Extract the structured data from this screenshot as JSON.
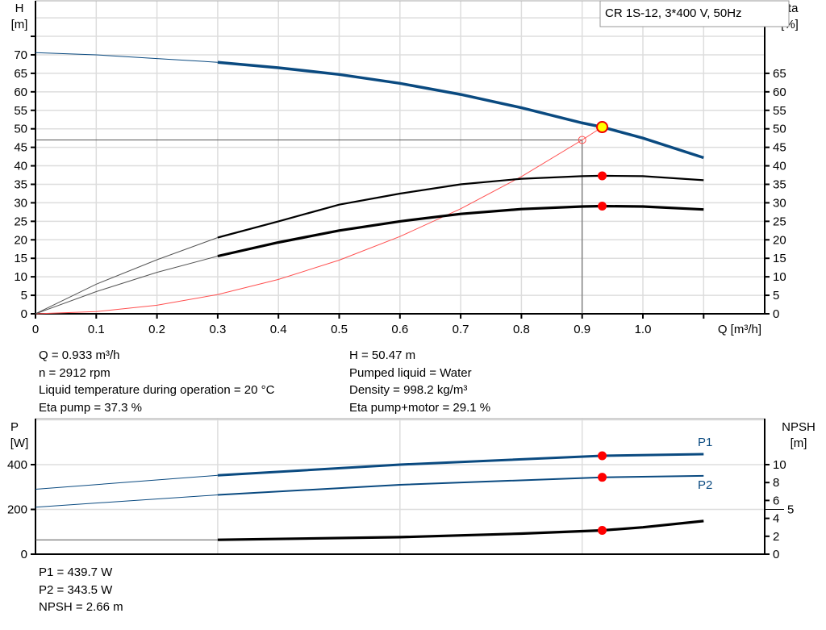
{
  "chart_data": [
    {
      "type": "line",
      "title": "CR 1S-12, 3*400 V, 50Hz",
      "xlabel": "Q [m³/h]",
      "ylabel_left": "H\n[m]",
      "ylabel_right": "eta\n[%]",
      "xlim": [
        0,
        1.2
      ],
      "ylim": [
        0,
        85
      ],
      "x_ticks": [
        "0",
        "0.1",
        "0.2",
        "0.3",
        "0.4",
        "0.5",
        "0.6",
        "0.7",
        "0.8",
        "0.9",
        "1.0"
      ],
      "y_ticks_left": [
        "0",
        "5",
        "10",
        "15",
        "20",
        "25",
        "30",
        "35",
        "40",
        "45",
        "50",
        "55",
        "60",
        "65",
        "70"
      ],
      "y_ticks_right": [
        "0",
        "5",
        "10",
        "15",
        "20",
        "25",
        "30",
        "35",
        "40",
        "45",
        "50",
        "55",
        "60",
        "65"
      ],
      "grid": true,
      "series": [
        {
          "id": "H",
          "color": "#0a4a80",
          "x": [
            0,
            0.1,
            0.2,
            0.3,
            0.4,
            0.5,
            0.6,
            0.7,
            0.8,
            0.9,
            0.933,
            1.0,
            1.1
          ],
          "values": [
            70.6,
            70,
            69,
            68,
            66.5,
            64.7,
            62.3,
            59.3,
            55.7,
            51.6,
            50.47,
            47.5,
            42.2
          ]
        },
        {
          "id": "eta_pump",
          "color": "#000000",
          "x": [
            0,
            0.1,
            0.2,
            0.3,
            0.4,
            0.5,
            0.6,
            0.7,
            0.8,
            0.9,
            0.933,
            1.0,
            1.1
          ],
          "values": [
            0,
            8,
            14.6,
            20.6,
            25,
            29.5,
            32.5,
            35,
            36.5,
            37.2,
            37.3,
            37.2,
            36.1
          ]
        },
        {
          "id": "eta_total",
          "color": "#000000",
          "x": [
            0,
            0.1,
            0.2,
            0.3,
            0.4,
            0.5,
            0.6,
            0.7,
            0.8,
            0.9,
            0.933,
            1.0,
            1.1
          ],
          "values": [
            0,
            6,
            11.2,
            15.6,
            19.3,
            22.5,
            25,
            27,
            28.3,
            29,
            29.1,
            29,
            28.2
          ]
        },
        {
          "id": "system",
          "color": "#ff5050",
          "x": [
            0,
            0.1,
            0.2,
            0.3,
            0.4,
            0.5,
            0.6,
            0.7,
            0.8,
            0.9,
            0.933
          ],
          "values": [
            0,
            0.58,
            2.32,
            5.22,
            9.28,
            14.5,
            20.9,
            28.4,
            37.1,
            47,
            50.47
          ]
        }
      ],
      "duty_point": {
        "Q": 0.933,
        "H": 50.47,
        "eta_pump": 37.3,
        "eta_total": 29.1
      },
      "reference_point": {
        "Q": 0.9,
        "H": 47
      }
    },
    {
      "type": "line",
      "ylabel_left": "P\n[W]",
      "ylabel_right": "NPSH\n[m]",
      "xlim": [
        0,
        1.2
      ],
      "ylim": [
        0,
        600
      ],
      "ylim_right": [
        0,
        13.5
      ],
      "y_ticks_left": [
        "0",
        "200",
        "400"
      ],
      "y_ticks_right": [
        "0",
        "2",
        "4",
        "5",
        "6",
        "8",
        "10"
      ],
      "grid": true,
      "series": [
        {
          "id": "P1",
          "name": "P1",
          "color": "#0a4a80",
          "x": [
            0,
            0.3,
            0.6,
            0.933,
            1.1
          ],
          "values": [
            290,
            352,
            400,
            439.7,
            447
          ]
        },
        {
          "id": "P2",
          "name": "P2",
          "color": "#0a4a80",
          "x": [
            0,
            0.3,
            0.6,
            0.933,
            1.1
          ],
          "values": [
            210,
            265,
            310,
            343.5,
            350
          ]
        },
        {
          "id": "NPSH",
          "color": "#000000",
          "x": [
            0,
            0.3,
            0.6,
            0.8,
            0.933,
            1.0,
            1.1
          ],
          "values": [
            1.6,
            1.6,
            1.9,
            2.3,
            2.66,
            3.0,
            3.7
          ]
        }
      ]
    }
  ],
  "info_top": {
    "left": [
      "Q = 0.933 m³/h",
      "n = 2912 rpm",
      "Liquid temperature during operation = 20 °C",
      "Eta pump = 37.3 %"
    ],
    "right": [
      "H = 50.47 m",
      "Pumped liquid = Water",
      "Density = 998.2 kg/m³",
      "Eta pump+motor = 29.1 %"
    ]
  },
  "info_bottom": [
    "P1 = 439.7 W",
    "P2 = 343.5 W",
    "NPSH = 2.66 m"
  ]
}
